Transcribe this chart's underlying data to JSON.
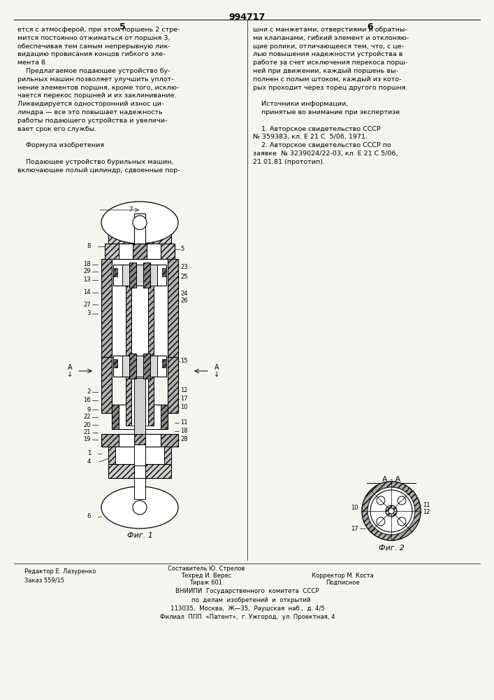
{
  "bg_color": "#f5f5f0",
  "title": "994717",
  "page_col_left": "5",
  "page_col_right": "6",
  "text_left_top": "ется с атмосферой, при этом поршень 2 стре-\nмится постоянно отжиматься от поршня 3,\nобеспечивая тем самым непрерывную лик-\nвидацию провисания концов гибкого эле-\nмента 8.\n    Предлагаемое подающее устройство бу-\nрильных машин позволяет улучшить уплот-\nнение элементов поршня, кроме того, исклю-\nчается перекос поршней и их заклинивание.\nЛиквидируется односторонний износ ци-\nлиндра — все это повышает надежность\nработы подающего устройства и увеличи-\nвает срок его службы.\n\n    Формула изобретения\n\n    Подающее устройство бурильных машин,\nвключающее полый цилиндр, сдвоенные пор-",
  "text_right_top": "шни с манжетами, отверстиями и обратны-\nми клапанами, гибкий элемент и отклоняю-\nщие ролики, отличающееся тем, что, с це-\nлью повышения надежности устройства в\nработе за счет исключения перекоса порш-\nней при движении, каждый поршень вы-\nполнен с полым штоком, каждый из кото-\nрых проходит через торец другого поршня.\n\n    Источники информации,\n    принятые во внимание при экспертизе\n\n    1. Авторское свидетельство СССР\n№ 359383, кл. Е 21 С  5/06, 1971.\n    2. Авторское свидетельство СССР по\nзаявке  № 3239024/22-03, кл. Е 21 С 5/06,\n21.01.81 (прототип).",
  "fig1_caption": "Фиг. 1",
  "fig2_caption": "Фиг. 2",
  "fig2_label": "А - А",
  "footer_left": "Редактор Е. Лазуренко\nЗаказ 559/15",
  "footer_center": "Составитель Ю. Стрелов\nТехред И. Верес\nТираж 601",
  "footer_right": "Корректор М. Коста\nПодписное",
  "footer_bottom": "ВНИИПИ  Государственного  комитета  СССР\n    по  делам  изобретений  и  открытий\n113035,  Москва,  Ж—35,  Раушская  наб.,  д. 4/5\nФилиал  ППП  «Патент»,  г. Ужгород,  ул. Проектная, 4"
}
